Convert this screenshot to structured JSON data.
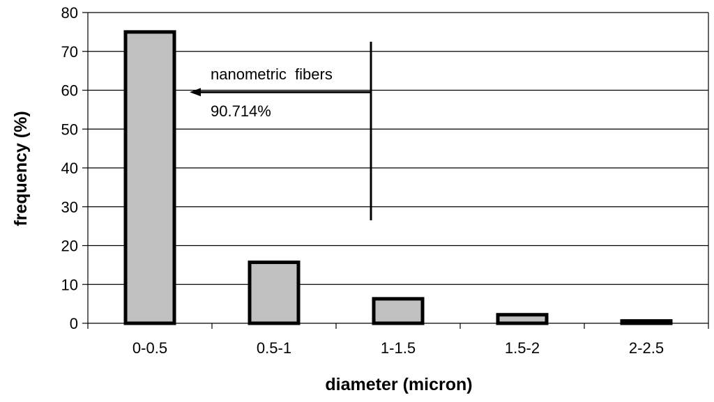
{
  "chart_data": {
    "type": "bar",
    "categories": [
      "0-0.5",
      "0.5-1",
      "1-1.5",
      "1.5-2",
      "2-2.5"
    ],
    "values": [
      75,
      15.7,
      6.3,
      2.2,
      0.6
    ],
    "xlabel": "diameter (micron)",
    "ylabel": "frequency (%)",
    "ylim": [
      0,
      80
    ],
    "yticks": [
      0,
      10,
      20,
      30,
      40,
      50,
      60,
      70,
      80
    ],
    "grid": true,
    "bar_fill": "#c0c0c0",
    "bar_stroke": "#000000",
    "annotation": {
      "label": "nanometric  fibers",
      "value": "90.714%",
      "arrow_y": 59.5,
      "divider_y_range": [
        26.5,
        72.5
      ]
    }
  }
}
